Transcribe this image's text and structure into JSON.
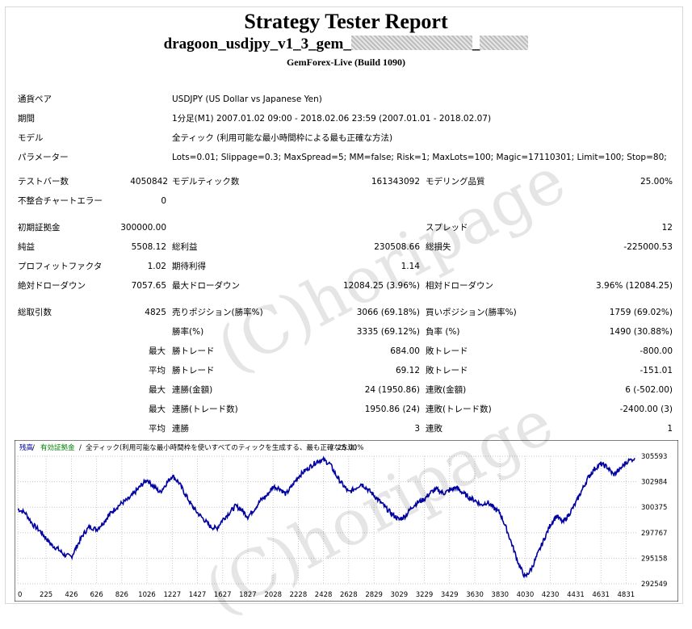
{
  "header": {
    "title": "Strategy Tester Report",
    "ea_name": "dragoon_usdjpy_v1_3_gem_",
    "ea_suffix": "_",
    "server": "GemForex-Live (Build 1090)"
  },
  "info": {
    "symbol_label": "通貨ペア",
    "symbol_value": "USDJPY (US Dollar vs Japanese Yen)",
    "period_label": "期間",
    "period_value": "1分足(M1) 2007.01.02 09:00 - 2018.02.06 23:59 (2007.01.01 - 2018.02.07)",
    "model_label": "モデル",
    "model_value": "全ティック (利用可能な最小時間枠による最も正確な方法)",
    "params_label": "パラメーター",
    "params_value": "Lots=0.01; Slippage=0.3; MaxSpread=5; MM=false; Risk=1; MaxLots=100; Magic=17110301; Limit=100; Stop=80;"
  },
  "stats": {
    "bars_label": "テストバー数",
    "bars_value": "4050842",
    "ticks_label": "モデルティック数",
    "ticks_value": "161343092",
    "quality_label": "モデリング品質",
    "quality_value": "25.00%",
    "mismatch_label": "不整合チャートエラー",
    "mismatch_value": "0",
    "deposit_label": "初期証拠金",
    "deposit_value": "300000.00",
    "spread_label": "スプレッド",
    "spread_value": "12",
    "net_label": "純益",
    "net_value": "5508.12",
    "gross_profit_label": "総利益",
    "gross_profit_value": "230508.66",
    "gross_loss_label": "総損失",
    "gross_loss_value": "-225000.53",
    "pf_label": "プロフィットファクタ",
    "pf_value": "1.02",
    "expected_label": "期待利得",
    "expected_value": "1.14",
    "abs_dd_label": "絶対ドローダウン",
    "abs_dd_value": "7057.65",
    "max_dd_label": "最大ドローダウン",
    "max_dd_value": "12084.25 (3.96%)",
    "rel_dd_label": "相対ドローダウン",
    "rel_dd_value": "3.96% (12084.25)",
    "trades_label": "総取引数",
    "trades_value": "4825",
    "short_label": "売りポジション(勝率%)",
    "short_value": "3066 (69.18%)",
    "long_label": "買いポジション(勝率%)",
    "long_value": "1759 (69.02%)",
    "win_rate_label": "勝率(%)",
    "win_rate_value": "3335 (69.12%)",
    "loss_rate_label": "負率 (%)",
    "loss_rate_value": "1490 (30.88%)",
    "max_prefix": "最大",
    "avg_prefix": "平均",
    "largest_win_label": "勝トレード",
    "largest_win_value": "684.00",
    "largest_loss_label": "敗トレード",
    "largest_loss_value": "-800.00",
    "avg_win_label": "勝トレード",
    "avg_win_value": "69.12",
    "avg_loss_label": "敗トレード",
    "avg_loss_value": "-151.01",
    "max_consec_win_label": "連勝(金額)",
    "max_consec_win_value": "24 (1950.86)",
    "max_consec_loss_label": "連敗(金額)",
    "max_consec_loss_value": "6 (-502.00)",
    "max_consec_profit_label": "連勝(トレード数)",
    "max_consec_profit_value": "1950.86 (24)",
    "max_consec_loss_count_label": "連敗(トレード数)",
    "max_consec_loss_count_value": "-2400.00 (3)",
    "avg_consec_win_label": "連勝",
    "avg_consec_win_value": "3",
    "avg_consec_loss_label": "連敗",
    "avg_consec_loss_value": "1"
  },
  "watermark": "(C)horipage",
  "chart_data": {
    "type": "line",
    "legend_balance": "残高",
    "legend_equity": "有効証拠金",
    "legend_model": "全ティック(利用可能な最小時間枠を使いすべてのティックを生成する、最も正確な方法)",
    "legend_quality": "25.00%",
    "x_ticks": [
      "0",
      "225",
      "426",
      "626",
      "826",
      "1026",
      "1227",
      "1427",
      "1627",
      "1827",
      "2028",
      "2228",
      "2428",
      "2628",
      "2829",
      "3029",
      "3229",
      "3429",
      "3630",
      "3830",
      "4030",
      "4230",
      "4431",
      "4631",
      "4831"
    ],
    "y_ticks": [
      "305593",
      "302984",
      "300375",
      "297767",
      "295158",
      "292549"
    ],
    "ylim": [
      292549,
      305593
    ],
    "xlim": [
      0,
      4925
    ],
    "colors": {
      "balance": "#0000a0",
      "grid": "#c8c8c8"
    },
    "series": [
      {
        "name": "残高",
        "x": [
          0,
          60,
          120,
          180,
          225,
          270,
          320,
          370,
          426,
          470,
          520,
          570,
          626,
          680,
          720,
          770,
          826,
          880,
          930,
          980,
          1026,
          1080,
          1130,
          1180,
          1227,
          1280,
          1330,
          1380,
          1427,
          1480,
          1530,
          1580,
          1627,
          1680,
          1730,
          1780,
          1827,
          1880,
          1930,
          1980,
          2028,
          2080,
          2130,
          2180,
          2228,
          2280,
          2330,
          2380,
          2428,
          2480,
          2530,
          2580,
          2628,
          2680,
          2730,
          2780,
          2829,
          2880,
          2930,
          2980,
          3029,
          3080,
          3130,
          3180,
          3229,
          3280,
          3330,
          3380,
          3429,
          3480,
          3530,
          3580,
          3630,
          3680,
          3730,
          3780,
          3830,
          3880,
          3930,
          3980,
          4030,
          4080,
          4130,
          4180,
          4230,
          4280,
          4330,
          4380,
          4431,
          4480,
          4530,
          4580,
          4631,
          4680,
          4730,
          4780,
          4831,
          4900
        ],
        "y": [
          300200,
          299800,
          298600,
          297900,
          297200,
          296500,
          296100,
          295500,
          295300,
          296400,
          297600,
          298400,
          298100,
          298800,
          299500,
          300200,
          300800,
          301200,
          301900,
          302600,
          303200,
          302500,
          301900,
          302800,
          303600,
          302900,
          301700,
          300600,
          299800,
          299100,
          298400,
          298200,
          299100,
          299800,
          300500,
          300100,
          299400,
          300200,
          301100,
          301600,
          302500,
          302300,
          301700,
          302600,
          303500,
          304100,
          304600,
          305100,
          305200,
          304800,
          303600,
          302700,
          301900,
          302300,
          302800,
          302200,
          301600,
          300900,
          300200,
          299600,
          299100,
          299500,
          300400,
          300900,
          301200,
          301900,
          302200,
          301800,
          302100,
          302400,
          301900,
          301400,
          301100,
          300600,
          300900,
          300300,
          299800,
          298200,
          296400,
          294500,
          293200,
          294100,
          295600,
          297100,
          298600,
          299500,
          298800,
          299700,
          300800,
          302100,
          303400,
          304300,
          304800,
          304500,
          303700,
          304200,
          305000,
          305400
        ]
      }
    ]
  }
}
